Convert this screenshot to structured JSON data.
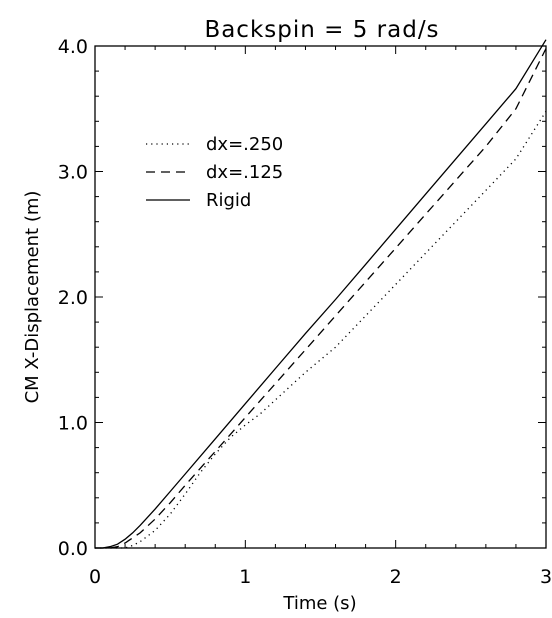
{
  "chart_data": {
    "type": "line",
    "title": "Backspin = 5 rad/s",
    "xlabel": "Time (s)",
    "ylabel": "CM X-Displacement (m)",
    "xlim": [
      0,
      3
    ],
    "ylim": [
      0,
      4
    ],
    "xticks": [
      0,
      1,
      2,
      3
    ],
    "xtick_labels": [
      "0",
      "1",
      "2",
      "3"
    ],
    "yticks": [
      0,
      1,
      2,
      3,
      4
    ],
    "ytick_labels": [
      "0.0",
      "1.0",
      "2.0",
      "3.0",
      "4.0"
    ],
    "grid": false,
    "legend_position": "top-left",
    "series": [
      {
        "name": "dx=.250",
        "style": "dotted",
        "x": [
          0,
          0.1,
          0.2,
          0.25,
          0.3,
          0.4,
          0.5,
          0.6,
          0.7,
          0.8,
          0.9,
          1.0,
          1.1,
          1.2,
          1.4,
          1.6,
          1.8,
          2.0,
          2.2,
          2.4,
          2.6,
          2.8,
          3.0
        ],
        "y": [
          0,
          0.0,
          0.0,
          0.02,
          0.05,
          0.14,
          0.27,
          0.43,
          0.6,
          0.75,
          0.88,
          0.98,
          1.07,
          1.18,
          1.4,
          1.6,
          1.85,
          2.1,
          2.35,
          2.6,
          2.85,
          3.1,
          3.48
        ]
      },
      {
        "name": "dx=.125",
        "style": "dashed",
        "x": [
          0,
          0.1,
          0.15,
          0.2,
          0.3,
          0.4,
          0.5,
          0.6,
          0.8,
          1.0,
          1.2,
          1.4,
          1.6,
          1.8,
          2.0,
          2.2,
          2.4,
          2.6,
          2.8,
          3.0
        ],
        "y": [
          0,
          0.0,
          0.01,
          0.04,
          0.12,
          0.23,
          0.36,
          0.5,
          0.77,
          1.04,
          1.31,
          1.58,
          1.85,
          2.12,
          2.39,
          2.66,
          2.93,
          3.2,
          3.5,
          3.98
        ]
      },
      {
        "name": "Rigid",
        "style": "solid",
        "x": [
          0,
          0.05,
          0.1,
          0.15,
          0.2,
          0.25,
          0.3,
          0.4,
          0.5,
          0.6,
          0.8,
          1.0,
          1.2,
          1.4,
          1.6,
          1.8,
          2.0,
          2.2,
          2.4,
          2.6,
          2.8,
          3.0
        ],
        "y": [
          0,
          0.0,
          0.01,
          0.03,
          0.07,
          0.12,
          0.18,
          0.31,
          0.45,
          0.59,
          0.87,
          1.15,
          1.43,
          1.71,
          1.98,
          2.26,
          2.54,
          2.82,
          3.1,
          3.38,
          3.66,
          4.05
        ]
      }
    ]
  }
}
